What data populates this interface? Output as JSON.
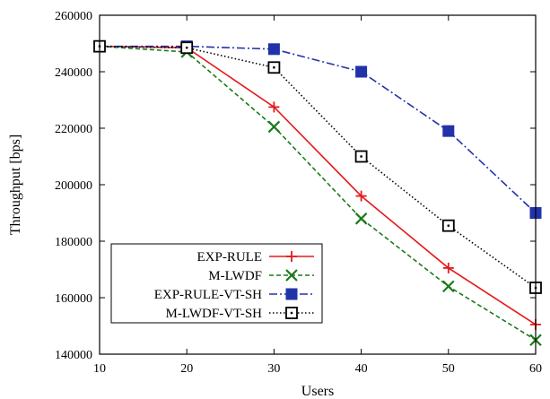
{
  "chart_data": {
    "type": "line",
    "xlabel": "Users",
    "ylabel": "Throughput [bps]",
    "x": [
      10,
      20,
      30,
      40,
      50,
      60
    ],
    "xticks": [
      "10",
      "20",
      "30",
      "40",
      "50",
      "60"
    ],
    "yticks": [
      "140000",
      "160000",
      "180000",
      "200000",
      "220000",
      "240000",
      "260000"
    ],
    "xlim": [
      10,
      60
    ],
    "ylim": [
      140000,
      260000
    ],
    "grid": false,
    "legend_position": "bottom-left",
    "series": [
      {
        "name": "EXP-RULE",
        "color": "#e41a1c",
        "dash": "solid",
        "marker": "plus",
        "values": [
          249000,
          248500,
          227500,
          196000,
          170500,
          150500
        ]
      },
      {
        "name": "M-LWDF",
        "color": "#1a7a1a",
        "dash": "dashed",
        "marker": "x",
        "values": [
          249000,
          247000,
          220500,
          188000,
          164000,
          145000
        ]
      },
      {
        "name": "EXP-RULE-VT-SH",
        "color": "#2233aa",
        "dash": "dashdot",
        "marker": "filled-square",
        "values": [
          249000,
          249000,
          248000,
          240000,
          219000,
          190000
        ]
      },
      {
        "name": "M-LWDF-VT-SH",
        "color": "#000000",
        "dash": "dotted",
        "marker": "open-square",
        "values": [
          249000,
          248500,
          241500,
          210000,
          185500,
          163500
        ]
      }
    ]
  }
}
